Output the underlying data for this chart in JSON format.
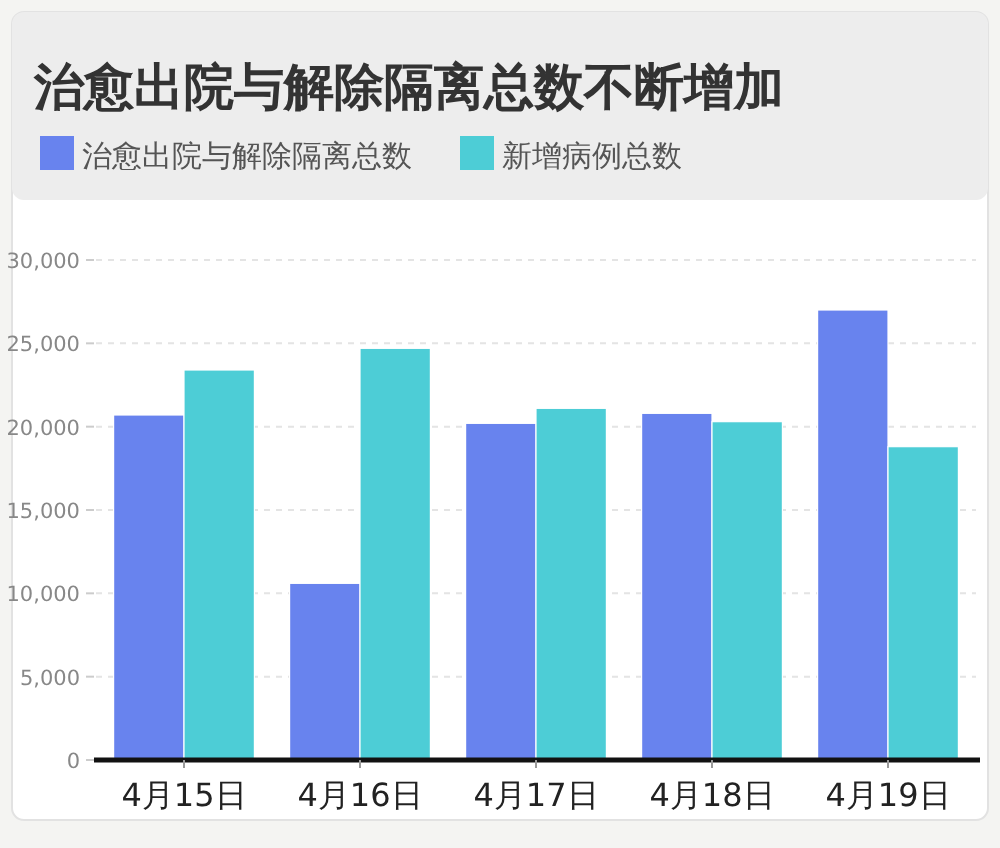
{
  "chart_data": {
    "type": "bar",
    "title": "治愈出院与解除隔离总数不断增加",
    "categories": [
      "4月15日",
      "4月16日",
      "4月17日",
      "4月18日",
      "4月19日"
    ],
    "series": [
      {
        "name": "治愈出院与解除隔离总数",
        "color": "#6883ee",
        "values": [
          20700,
          10600,
          20200,
          20800,
          27000
        ]
      },
      {
        "name": "新增病例总数",
        "color": "#4dcdd6",
        "values": [
          23400,
          24700,
          21100,
          20300,
          18800
        ]
      }
    ],
    "ylim": [
      0,
      30000
    ],
    "yticks": [
      0,
      {
        "value": 5000,
        "label": "5,000"
      },
      {
        "value": 10000,
        "label": "10,000"
      },
      {
        "value": 15000,
        "label": "15,000"
      },
      {
        "value": 20000,
        "label": "20,000"
      },
      {
        "value": 25000,
        "label": "25,000"
      },
      {
        "value": 30000,
        "label": "30,000"
      }
    ],
    "grid": "y",
    "legend": "top left"
  }
}
